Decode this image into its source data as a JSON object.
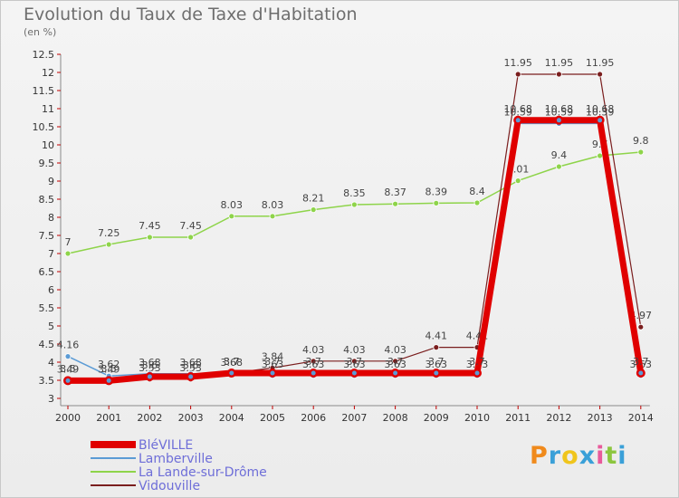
{
  "chart_data": {
    "type": "line",
    "title": "Evolution du Taux de Taxe d'Habitation",
    "ylabel": "(en %)",
    "ylim": [
      3,
      12.5
    ],
    "yticks": [
      "3",
      "3.5",
      "4",
      "4.5",
      "5",
      "5.5",
      "6",
      "6.5",
      "7",
      "7.5",
      "8",
      "8.5",
      "9",
      "9.5",
      "10",
      "10.5",
      "11",
      "11.5",
      "12",
      "12.5"
    ],
    "categories": [
      "2000",
      "2001",
      "2002",
      "2003",
      "2004",
      "2005",
      "2006",
      "2007",
      "2008",
      "2009",
      "2010",
      "2011",
      "2012",
      "2013",
      "2014"
    ],
    "grid": false,
    "legend": "bottom-left",
    "series": [
      {
        "name": "BléVILLE",
        "color": "#e00000",
        "values": [
          3.49,
          3.49,
          3.6,
          3.6,
          3.7,
          3.7,
          3.7,
          3.7,
          3.7,
          3.7,
          3.7,
          10.68,
          10.68,
          10.68,
          3.7
        ],
        "labels": [
          "3.49",
          "3.49",
          "3.6",
          "3.6",
          "3.7",
          "3.7",
          "3.7",
          "3.7",
          "3.7",
          "3.7",
          "3.7",
          "10.68",
          "10.68",
          "10.68",
          "3.7"
        ]
      },
      {
        "name": "Lamberville",
        "color": "#5b9bd5",
        "values": [
          4.16,
          3.62,
          3.68,
          3.68,
          3.68,
          3.63,
          3.63,
          3.63,
          3.63,
          3.63,
          3.63,
          10.59,
          10.59,
          10.59,
          3.63
        ],
        "labels": [
          "4.16",
          "3.62",
          "3.68",
          "3.68",
          "3.68",
          "3.63",
          "3.63",
          "3.63",
          "3.63",
          "3.63",
          "3.63",
          "10.59",
          "10.59",
          "10.59",
          "3.63"
        ]
      },
      {
        "name": "La Lande-sur-Drôme",
        "color": "#8ed44a",
        "values": [
          7,
          7.25,
          7.45,
          7.45,
          8.03,
          8.03,
          8.21,
          8.35,
          8.37,
          8.39,
          8.4,
          9.01,
          9.4,
          9.7,
          9.8
        ],
        "labels": [
          "7",
          "7.25",
          "7.45",
          "7.45",
          "8.03",
          "8.03",
          "8.21",
          "8.35",
          "8.37",
          "8.39",
          "8.4",
          "9.01",
          "9.4",
          "9.7",
          "9.8"
        ]
      },
      {
        "name": "Vidouville",
        "color": "#7a1e1e",
        "values": [
          3.5,
          3.5,
          3.53,
          3.53,
          3.7,
          3.84,
          4.03,
          4.03,
          4.03,
          4.41,
          4.41,
          11.95,
          11.95,
          11.95,
          4.97
        ],
        "labels": [
          "3.5",
          "3.5",
          "3.53",
          "3.53",
          "3.7",
          "3.84",
          "4.03",
          "4.03",
          "4.03",
          "4.41",
          "4.41",
          "11.95",
          "11.95",
          "11.95",
          "4.97"
        ]
      }
    ]
  },
  "logo": {
    "text": "Proxiti",
    "colors": [
      "#f08a1c",
      "#3aa0d8",
      "#f0c51c",
      "#3aa0d8",
      "#e85a9b",
      "#8cc63f",
      "#3aa0d8"
    ]
  }
}
